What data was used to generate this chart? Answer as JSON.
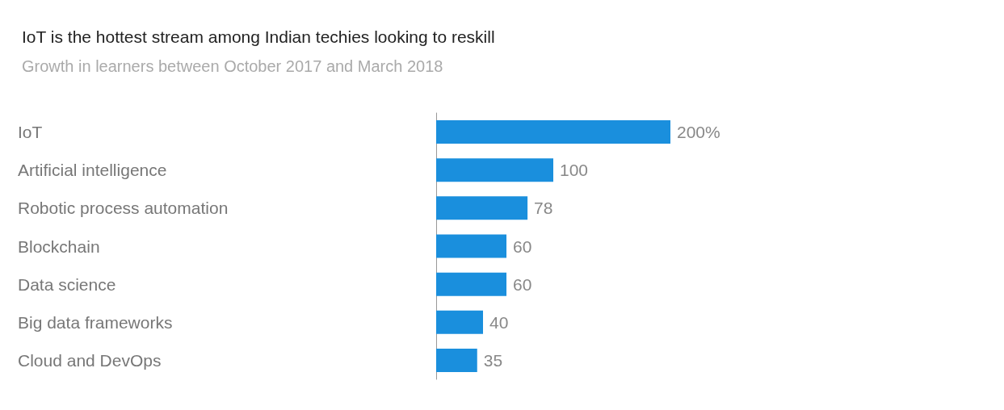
{
  "chart_data": {
    "type": "bar",
    "orientation": "horizontal",
    "title": "IoT is the hottest stream among Indian techies looking to reskill",
    "subtitle": "Growth in learners between October 2017 and March 2018",
    "categories": [
      "IoT",
      "Artificial intelligence",
      "Robotic process automation",
      "Blockchain",
      "Data science",
      "Big data frameworks",
      "Cloud and DevOps"
    ],
    "values": [
      200,
      100,
      78,
      60,
      60,
      40,
      35
    ],
    "value_labels": [
      "200%",
      "100",
      "78",
      "60",
      "60",
      "40",
      "35"
    ],
    "color": "#1a8fdd"
  }
}
